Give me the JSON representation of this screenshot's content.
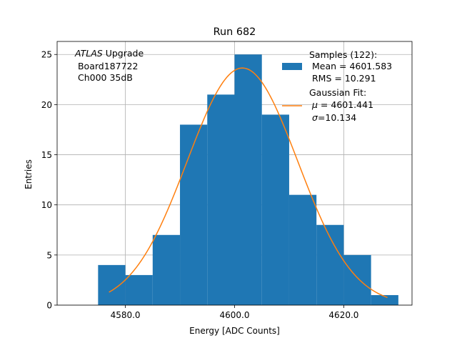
{
  "chart_data": {
    "type": "bar",
    "title": "Run 682",
    "xlabel": "Energy [ADC Counts]",
    "ylabel": "Entries",
    "xlim": [
      4567.5,
      4632.5
    ],
    "ylim": [
      0,
      26.3
    ],
    "xticks": [
      4580,
      4600,
      4620
    ],
    "xtick_labels": [
      "4580.0",
      "4600.0",
      "4620.0"
    ],
    "yticks": [
      0,
      5,
      10,
      15,
      20,
      25
    ],
    "ytick_labels": [
      "0",
      "5",
      "10",
      "15",
      "20",
      "25"
    ],
    "grid": true,
    "bin_edges": [
      4575,
      4580,
      4585,
      4590,
      4595,
      4600,
      4605,
      4610,
      4615,
      4620,
      4625,
      4630
    ],
    "values": [
      4,
      3,
      7,
      18,
      21,
      25,
      19,
      11,
      8,
      5,
      1
    ],
    "fit": {
      "x_range": [
        4577,
        4628
      ],
      "amplitude": 23.65,
      "mu": 4601.441,
      "sigma": 10.134
    },
    "annotation": {
      "line1_italic": "ATLAS",
      "line1_rest": " Upgrade",
      "line2": " Board187722",
      "line3": " Ch000 35dB"
    },
    "legend": {
      "position": "upper-right",
      "samples_title": "Samples (122):",
      "samples_mean": " Mean = 4601.583",
      "samples_rms": " RMS = 10.291",
      "fit_title": "Gaussian Fit:",
      "fit_mu_symbol": "μ",
      "fit_mu_value": " = 4601.441",
      "fit_sigma_symbol": "σ",
      "fit_sigma_value": "=10.134"
    },
    "colors": {
      "bars": "#1f77b4",
      "fit": "#ff7f0e",
      "grid": "#b0b0b0"
    }
  }
}
